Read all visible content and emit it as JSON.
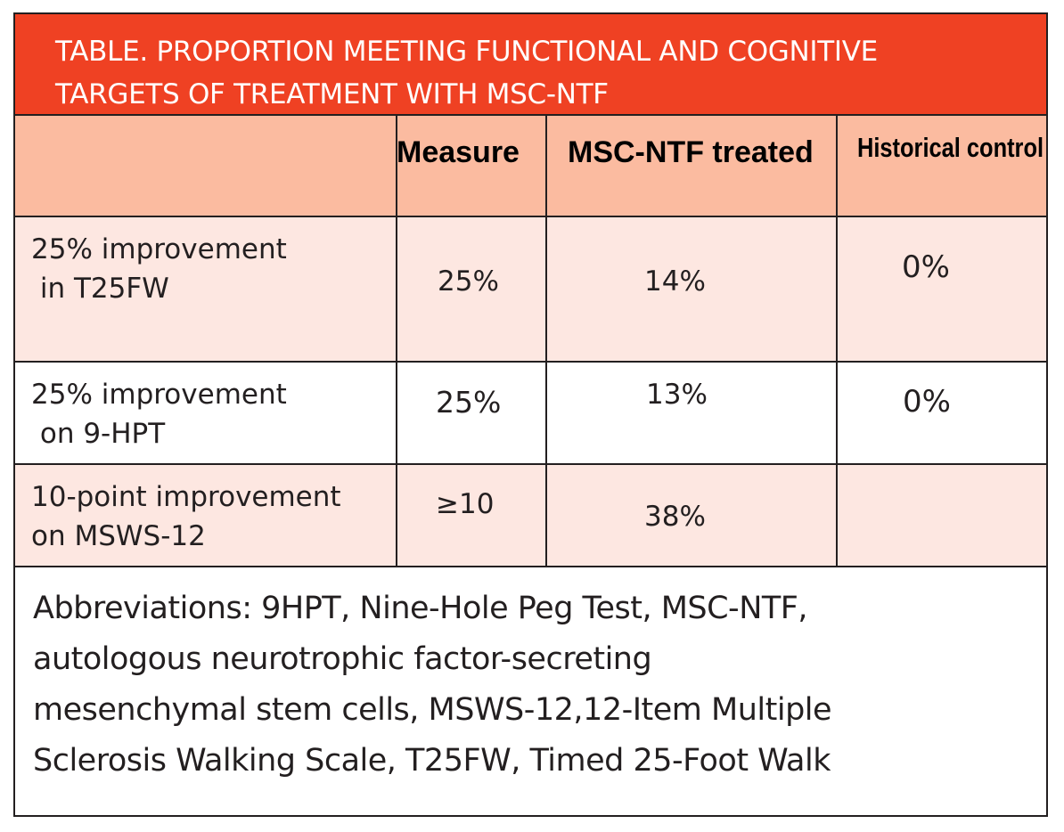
{
  "title": {
    "line1": "TABLE. PROPORTION MEETING FUNCTIONAL AND COGNITIVE",
    "line2": "TARGETS OF TREATMENT WITH MSC-NTF"
  },
  "headers": {
    "measure": "Measure",
    "treated": "MSC-NTF treated",
    "control": "Historical control"
  },
  "rows": [
    {
      "label_line1": "25% improvement",
      "label_line2": " in T25FW",
      "measure": "25%",
      "treated": "14%",
      "control": "0%"
    },
    {
      "label_line1": "25% improvement",
      "label_line2": " on 9-HPT",
      "measure": "25%",
      "treated": "13%",
      "control": "0%"
    },
    {
      "label_line1": "10-point improvement",
      "label_line2": "on MSWS-12",
      "measure": "≥10",
      "treated": "38%",
      "control": ""
    }
  ],
  "footnote": {
    "line1": "Abbreviations: 9HPT, Nine-Hole Peg Test, MSC-NTF,",
    "line2": "autologous neurotrophic factor-secreting",
    "line3": "mesenchymal stem cells, MSWS-12,12-Item Multiple",
    "line4": "Sclerosis Walking Scale, T25FW, Timed 25-Foot Walk"
  },
  "colors": {
    "title_bg": "#ef4123",
    "header_bg": "#fbbba0",
    "row_shaded_bg": "#fde7e1",
    "border": "#231f20"
  }
}
